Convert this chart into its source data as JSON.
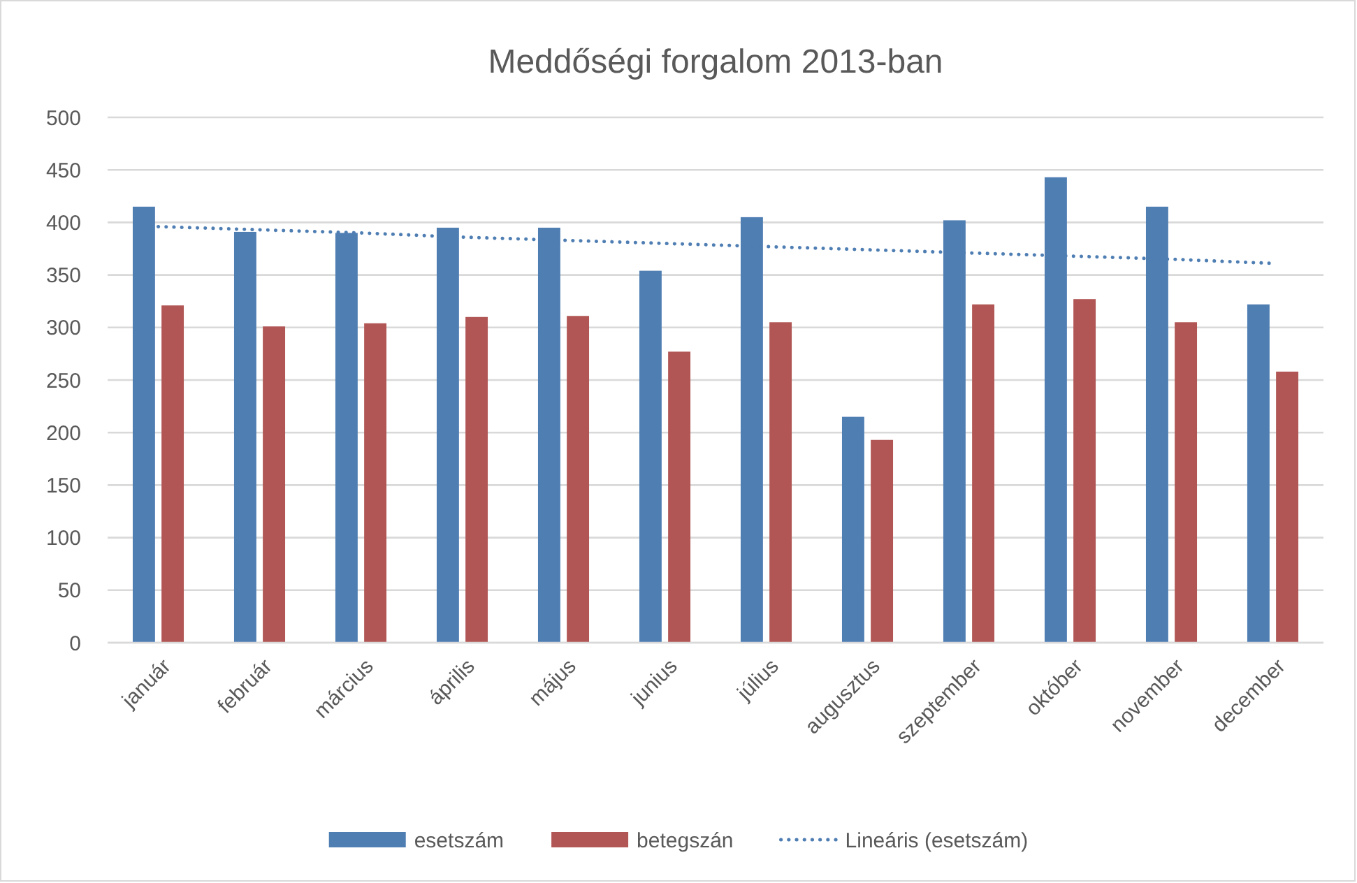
{
  "chart_data": {
    "type": "bar",
    "title": "Meddőségi forgalom 2013-ban",
    "categories": [
      "január",
      "február",
      "március",
      "április",
      "május",
      "junius",
      "július",
      "augusztus",
      "szeptember",
      "október",
      "november",
      "december"
    ],
    "series": [
      {
        "name": "esetszám",
        "color": "#4f7eb3",
        "values": [
          415,
          391,
          390,
          395,
          395,
          354,
          405,
          215,
          402,
          443,
          415,
          322
        ]
      },
      {
        "name": "betegszán",
        "color": "#b15654",
        "values": [
          321,
          301,
          304,
          310,
          311,
          277,
          305,
          193,
          322,
          327,
          305,
          258
        ]
      },
      {
        "name": "Lineáris (esetszám)",
        "type": "line",
        "color": "#4f7eb3",
        "line_style": "dotted",
        "values": [
          396,
          393,
          390,
          386,
          383,
          380,
          377,
          374,
          371,
          368,
          365,
          361
        ]
      }
    ],
    "ylim": [
      0,
      500
    ],
    "yticks": [
      0,
      50,
      100,
      150,
      200,
      250,
      300,
      350,
      400,
      450,
      500
    ],
    "grid": "y",
    "legend": "bottom"
  }
}
